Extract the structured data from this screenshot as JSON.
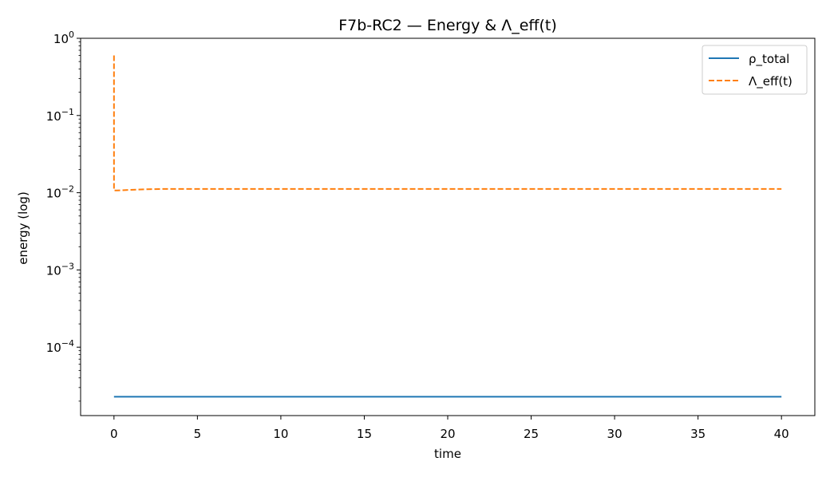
{
  "chart_data": {
    "type": "line",
    "title": "F7b-RC2 — Energy & Λ_eff(t)",
    "xlabel": "time",
    "ylabel": "energy (log)",
    "xlim": [
      -2,
      42
    ],
    "ylim": [
      1.3e-05,
      1.0
    ],
    "yscale": "log",
    "grid": false,
    "legend_position": "top-right",
    "x_ticks": [
      {
        "value": 0,
        "label": "0"
      },
      {
        "value": 5,
        "label": "5"
      },
      {
        "value": 10,
        "label": "10"
      },
      {
        "value": 15,
        "label": "15"
      },
      {
        "value": 20,
        "label": "20"
      },
      {
        "value": 25,
        "label": "25"
      },
      {
        "value": 30,
        "label": "30"
      },
      {
        "value": 35,
        "label": "35"
      },
      {
        "value": 40,
        "label": "40"
      }
    ],
    "y_ticks": [
      {
        "value": 0.0001,
        "base": "10",
        "exp": "−4"
      },
      {
        "value": 0.001,
        "base": "10",
        "exp": "−3"
      },
      {
        "value": 0.01,
        "base": "10",
        "exp": "−2"
      },
      {
        "value": 0.1,
        "base": "10",
        "exp": "−1"
      },
      {
        "value": 1,
        "base": "10",
        "exp": "0"
      }
    ],
    "series": [
      {
        "name": "ρ_total",
        "color": "#1f77b4",
        "style": "solid",
        "x": [
          0,
          40
        ],
        "y": [
          2.28e-05,
          2.28e-05
        ]
      },
      {
        "name": "Λ_eff(t)",
        "color": "#ff7f0e",
        "style": "dashed",
        "x": [
          0,
          0.001,
          0.2,
          1,
          2,
          3,
          5,
          10,
          20,
          30,
          40
        ],
        "y": [
          0.6,
          0.0107,
          0.0107,
          0.0109,
          0.0111,
          0.0112,
          0.0112,
          0.0112,
          0.0112,
          0.0112,
          0.0112
        ]
      }
    ]
  }
}
